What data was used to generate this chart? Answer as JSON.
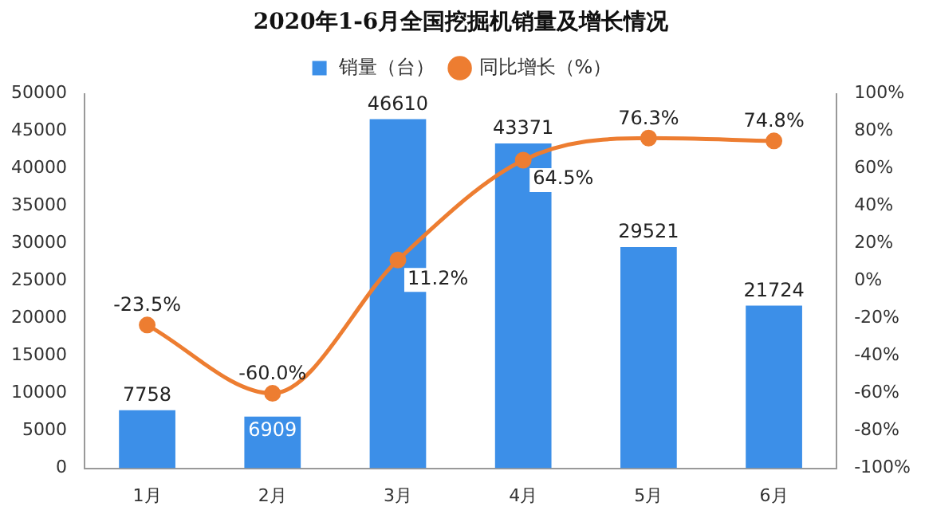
{
  "chart_data": {
    "type": "bar",
    "title": "2020年1-6月全国挖掘机销量及增长情况",
    "categories": [
      "1月",
      "2月",
      "3月",
      "4月",
      "5月",
      "6月"
    ],
    "series": [
      {
        "name": "销量（台）",
        "color": "#3c8fe8",
        "values": [
          7758,
          6909,
          46610,
          43371,
          29521,
          21724
        ],
        "value_labels": [
          "7758",
          "6909",
          "46610",
          "43371",
          "29521",
          "21724"
        ]
      },
      {
        "name": "同比增长（%）",
        "type": "line",
        "axis": "y2",
        "color": "#ed7d31",
        "values": [
          -23.5,
          -60.0,
          11.2,
          64.5,
          76.3,
          74.8
        ],
        "value_labels": [
          "-23.5%",
          "-60.0%",
          "11.2%",
          "64.5%",
          "76.3%",
          "74.8%"
        ]
      }
    ],
    "ylim": [
      0,
      50000
    ],
    "yticks": [
      0,
      5000,
      10000,
      15000,
      20000,
      25000,
      30000,
      35000,
      40000,
      45000,
      50000
    ],
    "y2lim": [
      -100,
      100
    ],
    "y2ticks": [
      {
        "value": -100,
        "label": "-100%"
      },
      {
        "value": -80,
        "label": "-80%"
      },
      {
        "value": -60,
        "label": "-60%"
      },
      {
        "value": -40,
        "label": "-40%"
      },
      {
        "value": -20,
        "label": "-20%"
      },
      {
        "value": 0,
        "label": "0%"
      },
      {
        "value": 20,
        "label": "20%"
      },
      {
        "value": 40,
        "label": "40%"
      },
      {
        "value": 60,
        "label": "60%"
      },
      {
        "value": 80,
        "label": "80%"
      },
      {
        "value": 100,
        "label": "100%"
      }
    ],
    "legend": "top",
    "marker": "circle"
  }
}
